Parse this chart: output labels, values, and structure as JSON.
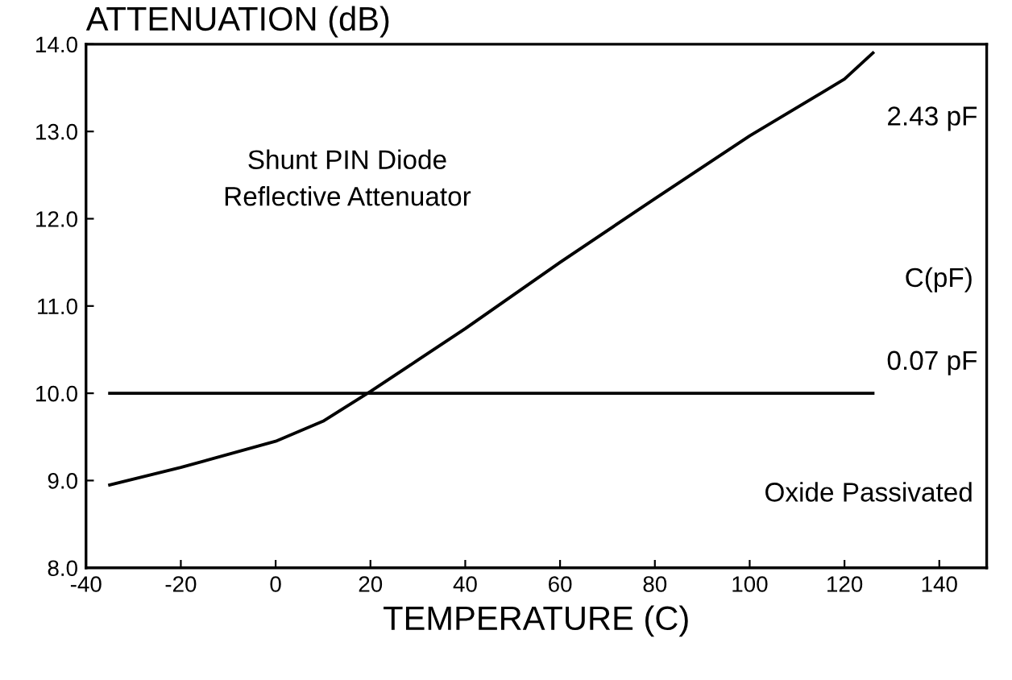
{
  "chart_data": {
    "type": "line",
    "xlabel": "TEMPERATURE (C)",
    "ylabel": "ATTENUATION (dB)",
    "legend_title": "C(pF)",
    "annotations": [
      "Shunt PIN Diode\nReflective Attenuator",
      "Oxide Passivated"
    ],
    "series": [
      {
        "name": "2.43 pF",
        "color": "#000000",
        "x": [
          -35,
          -20,
          0,
          10,
          20,
          30,
          40,
          60,
          80,
          100,
          120,
          126
        ],
        "values": [
          8.95,
          9.15,
          9.45,
          9.68,
          10.02,
          10.38,
          10.74,
          11.5,
          12.23,
          12.95,
          13.6,
          13.9
        ]
      },
      {
        "name": "0.07 pF",
        "color": "#000000",
        "x": [
          -35,
          126
        ],
        "values": [
          10.0,
          10.0
        ]
      }
    ],
    "xlim": [
      -40,
      150
    ],
    "ylim": [
      8,
      14
    ],
    "xticks": [
      -40,
      -20,
      0,
      20,
      40,
      60,
      80,
      100,
      120,
      140
    ],
    "yticks": [
      {
        "value": 8,
        "label": "8.0"
      },
      {
        "value": 9,
        "label": "9.0"
      },
      {
        "value": 10,
        "label": "10.0"
      },
      {
        "value": 11,
        "label": "11.0"
      },
      {
        "value": 12,
        "label": "12.0"
      },
      {
        "value": 13,
        "label": "13.0"
      },
      {
        "value": 14,
        "label": "14.0"
      }
    ],
    "grid": false,
    "legend": false,
    "marker": "none",
    "line_style": "solid"
  }
}
